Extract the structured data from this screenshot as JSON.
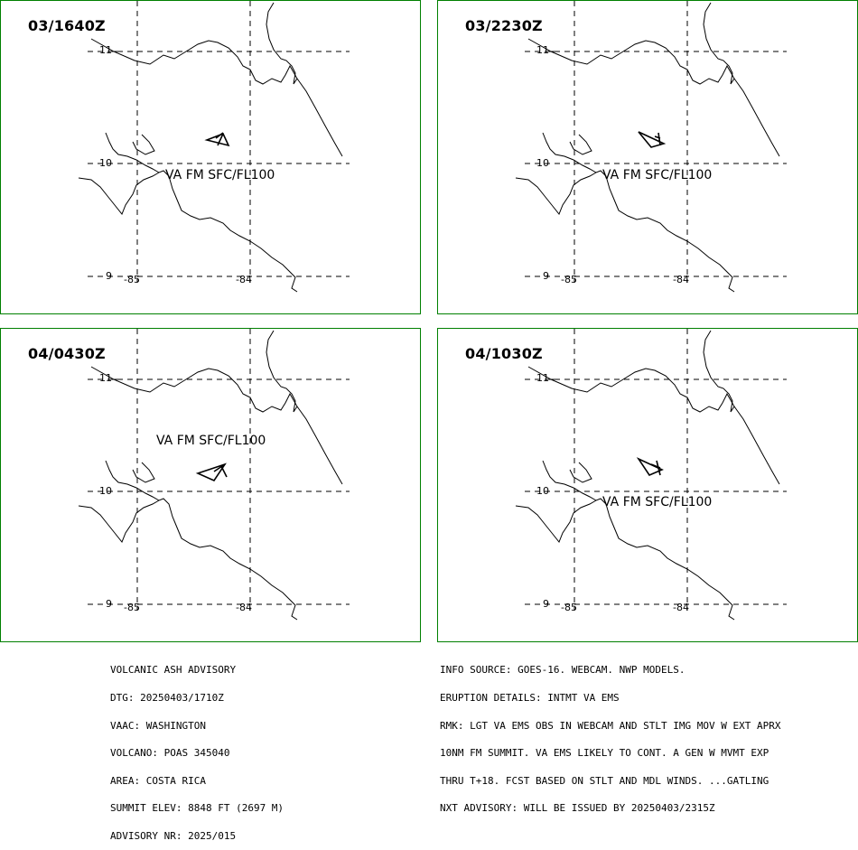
{
  "panels": [
    {
      "time": "03/1640Z",
      "label": "VA FM SFC/FL100"
    },
    {
      "time": "03/2230Z",
      "label": "VA FM SFC/FL100"
    },
    {
      "time": "04/0430Z",
      "label": "VA FM SFC/FL100"
    },
    {
      "time": "04/1030Z",
      "label": "VA FM SFC/FL100"
    }
  ],
  "grid_labels": {
    "lat_11": "11",
    "lat_10": "10",
    "lat_9": "9",
    "lon_85": "-85",
    "lon_84": "-84"
  },
  "advisory_left": [
    "VOLCANIC ASH ADVISORY",
    "DTG: 20250403/1710Z",
    "VAAC: WASHINGTON",
    "VOLCANO: POAS 345040",
    "AREA: COSTA RICA",
    "SUMMIT ELEV: 8848 FT (2697 M)",
    "ADVISORY NR: 2025/015"
  ],
  "advisory_right": [
    "INFO SOURCE: GOES-16. WEBCAM. NWP MODELS.",
    "ERUPTION DETAILS: INTMT VA EMS",
    "RMK: LGT VA EMS OBS IN WEBCAM AND STLT IMG MOV W EXT APRX",
    "10NM FM SUMMIT. VA EMS LIKELY TO CONT. A GEN W MVMT EXP",
    "THRU T+18. FCST BASED ON STLT AND MDL WINDS. ...GATLING",
    "NXT ADVISORY: WILL BE ISSUED BY 20250403/2315Z"
  ],
  "colors": {
    "frame": "#008000",
    "lines": "#000000",
    "background": "#ffffff"
  }
}
